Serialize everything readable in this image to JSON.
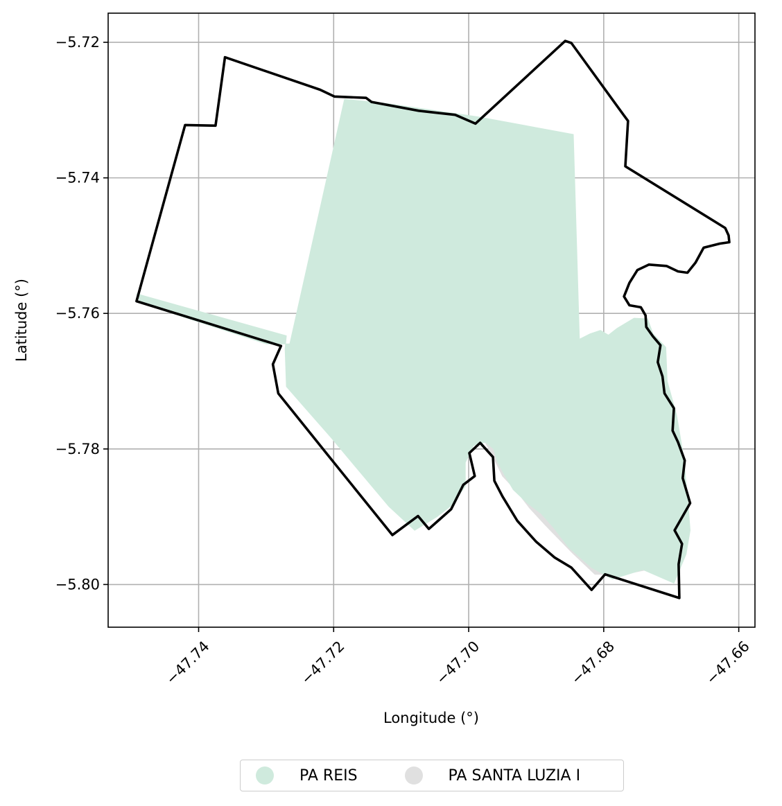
{
  "chart_data": {
    "type": "map",
    "xlabel": "Longitude (°)",
    "ylabel": "Latitude (°)",
    "xlim": [
      -47.7534,
      -47.6576
    ],
    "ylim": [
      -5.8063,
      -5.7157
    ],
    "xticks": [
      -47.74,
      -47.72,
      -47.7,
      -47.68,
      -47.66
    ],
    "xtick_labels": [
      "−47.74",
      "−47.72",
      "−47.70",
      "−47.68",
      "−47.66"
    ],
    "yticks": [
      -5.72,
      -5.74,
      -5.76,
      -5.78,
      -5.8
    ],
    "ytick_labels": [
      "−5.72",
      "−5.74",
      "−5.76",
      "−5.78",
      "−5.80"
    ],
    "grid": true,
    "legend_position": "bottom-center",
    "legend": [
      {
        "name": "PA REIS",
        "color": "#cfeadd"
      },
      {
        "name": "PA SANTA LUZIA I",
        "color": "#e0e0e0"
      }
    ],
    "layers": [
      {
        "name": "PA SANTA LUZIA I",
        "color": "#e0e0e0",
        "polygon": [
          [
            -47.6992,
            -5.7783
          ],
          [
            -47.6975,
            -5.7791
          ],
          [
            -47.6964,
            -5.7811
          ],
          [
            -47.695,
            -5.784
          ],
          [
            -47.693,
            -5.7861
          ],
          [
            -47.691,
            -5.7887
          ],
          [
            -47.6886,
            -5.7913
          ],
          [
            -47.6847,
            -5.7953
          ],
          [
            -47.6813,
            -5.7985
          ],
          [
            -47.677,
            -5.7985
          ],
          [
            -47.672,
            -5.7975
          ],
          [
            -47.6695,
            -5.7955
          ],
          [
            -47.67,
            -5.79
          ],
          [
            -47.672,
            -5.789
          ],
          [
            -47.675,
            -5.794
          ],
          [
            -47.679,
            -5.7962
          ],
          [
            -47.683,
            -5.7935
          ],
          [
            -47.687,
            -5.79
          ],
          [
            -47.6905,
            -5.787
          ],
          [
            -47.6935,
            -5.7835
          ],
          [
            -47.696,
            -5.78
          ],
          [
            -47.698,
            -5.7785
          ]
        ]
      },
      {
        "name": "PA REIS",
        "color": "#cfeadd",
        "polygon": [
          [
            -47.7184,
            -5.7284
          ],
          [
            -47.7123,
            -5.729
          ],
          [
            -47.6986,
            -5.731
          ],
          [
            -47.6845,
            -5.7336
          ],
          [
            -47.6836,
            -5.7638
          ],
          [
            -47.682,
            -5.763
          ],
          [
            -47.6805,
            -5.7625
          ],
          [
            -47.6793,
            -5.7632
          ],
          [
            -47.678,
            -5.7622
          ],
          [
            -47.6755,
            -5.7607
          ],
          [
            -47.6735,
            -5.7608
          ],
          [
            -47.6727,
            -5.763
          ],
          [
            -47.6708,
            -5.765
          ],
          [
            -47.6706,
            -5.77
          ],
          [
            -47.6692,
            -5.775
          ],
          [
            -47.6682,
            -5.781
          ],
          [
            -47.6676,
            -5.787
          ],
          [
            -47.6672,
            -5.792
          ],
          [
            -47.6678,
            -5.7955
          ],
          [
            -47.6696,
            -5.7998
          ],
          [
            -47.6742,
            -5.7978
          ],
          [
            -47.6787,
            -5.7992
          ],
          [
            -47.6818,
            -5.7975
          ],
          [
            -47.6852,
            -5.7945
          ],
          [
            -47.6875,
            -5.7915
          ],
          [
            -47.6893,
            -5.7895
          ],
          [
            -47.6913,
            -5.788
          ],
          [
            -47.6934,
            -5.786
          ],
          [
            -47.6946,
            -5.784
          ],
          [
            -47.6958,
            -5.7818
          ],
          [
            -47.6963,
            -5.78
          ],
          [
            -47.6975,
            -5.779
          ],
          [
            -47.6993,
            -5.7795
          ],
          [
            -47.7005,
            -5.782
          ],
          [
            -47.7005,
            -5.7855
          ],
          [
            -47.7025,
            -5.7883
          ],
          [
            -47.7047,
            -5.79
          ],
          [
            -47.708,
            -5.792
          ],
          [
            -47.7118,
            -5.7885
          ],
          [
            -47.7162,
            -5.7833
          ],
          [
            -47.7204,
            -5.7783
          ],
          [
            -47.7242,
            -5.774
          ],
          [
            -47.727,
            -5.7708
          ],
          [
            -47.7272,
            -5.7652
          ],
          [
            -47.727,
            -5.7633
          ],
          [
            -47.7492,
            -5.7571
          ],
          [
            -47.7485,
            -5.7585
          ],
          [
            -47.73,
            -5.7645
          ],
          [
            -47.7265,
            -5.7645
          ]
        ]
      },
      {
        "name": "outline",
        "color": "#000000",
        "polygon": [
          [
            -47.7492,
            -5.7582
          ],
          [
            -47.7466,
            -5.7488
          ],
          [
            -47.742,
            -5.7322
          ],
          [
            -47.7375,
            -5.7323
          ],
          [
            -47.7361,
            -5.7222
          ],
          [
            -47.722,
            -5.727
          ],
          [
            -47.7199,
            -5.728
          ],
          [
            -47.7152,
            -5.7282
          ],
          [
            -47.7144,
            -5.7288
          ],
          [
            -47.7074,
            -5.7301
          ],
          [
            -47.702,
            -5.7307
          ],
          [
            -47.699,
            -5.732
          ],
          [
            -47.6857,
            -5.7198
          ],
          [
            -47.6848,
            -5.7201
          ],
          [
            -47.677,
            -5.7308
          ],
          [
            -47.6764,
            -5.7316
          ],
          [
            -47.6768,
            -5.7383
          ],
          [
            -47.662,
            -5.7474
          ],
          [
            -47.6615,
            -5.7485
          ],
          [
            -47.6614,
            -5.7495
          ],
          [
            -47.6628,
            -5.7497
          ],
          [
            -47.6652,
            -5.7503
          ],
          [
            -47.6664,
            -5.7525
          ],
          [
            -47.6676,
            -5.754
          ],
          [
            -47.669,
            -5.7538
          ],
          [
            -47.6707,
            -5.753
          ],
          [
            -47.6733,
            -5.7528
          ],
          [
            -47.675,
            -5.7536
          ],
          [
            -47.6762,
            -5.7555
          ],
          [
            -47.677,
            -5.7575
          ],
          [
            -47.6762,
            -5.7588
          ],
          [
            -47.6745,
            -5.7591
          ],
          [
            -47.6738,
            -5.7603
          ],
          [
            -47.6737,
            -5.762
          ],
          [
            -47.6727,
            -5.7634
          ],
          [
            -47.6716,
            -5.7647
          ],
          [
            -47.672,
            -5.7672
          ],
          [
            -47.6713,
            -5.7693
          ],
          [
            -47.671,
            -5.7718
          ],
          [
            -47.6696,
            -5.774
          ],
          [
            -47.6698,
            -5.7773
          ],
          [
            -47.669,
            -5.779
          ],
          [
            -47.668,
            -5.7817
          ],
          [
            -47.6683,
            -5.7843
          ],
          [
            -47.6672,
            -5.788
          ],
          [
            -47.6695,
            -5.792
          ],
          [
            -47.6684,
            -5.794
          ],
          [
            -47.6689,
            -5.797
          ],
          [
            -47.6688,
            -5.802
          ],
          [
            -47.6798,
            -5.7985
          ],
          [
            -47.6818,
            -5.8008
          ],
          [
            -47.6848,
            -5.7975
          ],
          [
            -47.6873,
            -5.796
          ],
          [
            -47.69,
            -5.7937
          ],
          [
            -47.6928,
            -5.7906
          ],
          [
            -47.695,
            -5.787
          ],
          [
            -47.6962,
            -5.7847
          ],
          [
            -47.6964,
            -5.7812
          ],
          [
            -47.6983,
            -5.7791
          ],
          [
            -47.6999,
            -5.7806
          ],
          [
            -47.6991,
            -5.784
          ],
          [
            -47.7008,
            -5.7853
          ],
          [
            -47.7026,
            -5.7889
          ],
          [
            -47.7059,
            -5.7918
          ],
          [
            -47.7075,
            -5.7899
          ],
          [
            -47.7113,
            -5.7927
          ],
          [
            -47.7211,
            -5.7806
          ],
          [
            -47.7282,
            -5.7718
          ],
          [
            -47.729,
            -5.7675
          ],
          [
            -47.7278,
            -5.7648
          ],
          [
            -47.7492,
            -5.7582
          ]
        ]
      }
    ]
  }
}
